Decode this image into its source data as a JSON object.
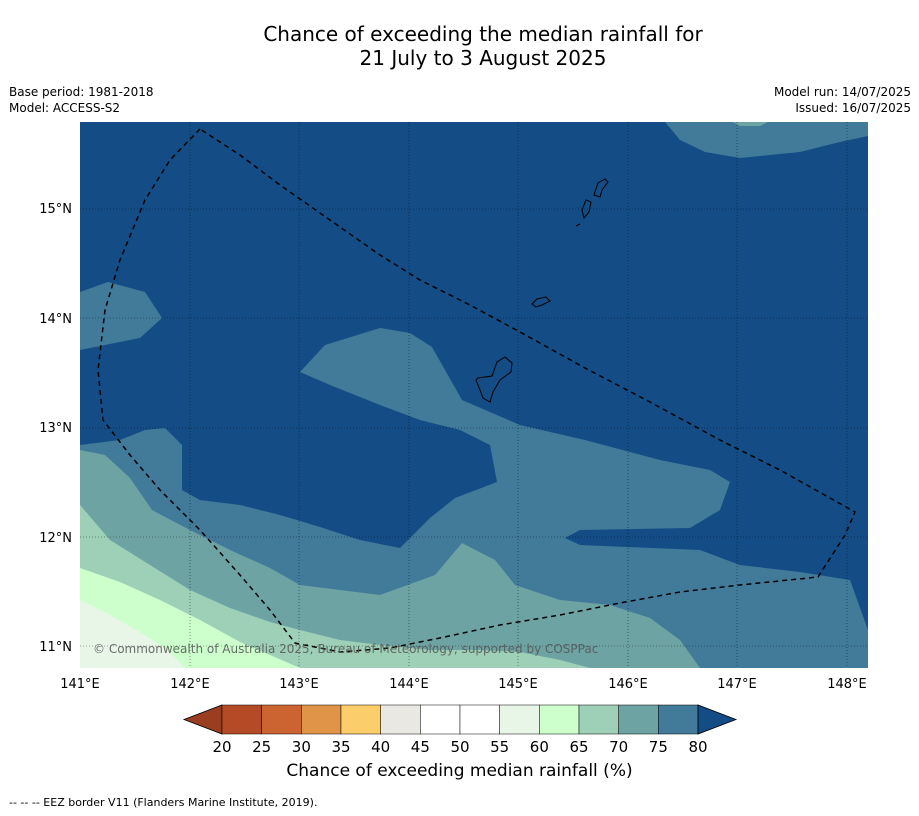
{
  "title": {
    "line1": "Chance of exceeding the median rainfall for",
    "line2": "21 July to 3 August 2025"
  },
  "meta_left": {
    "base_period": "Base period: 1981-2018",
    "model": "Model: ACCESS-S2"
  },
  "meta_right": {
    "model_run": "Model run: 14/07/2025",
    "issued": "Issued: 16/07/2025"
  },
  "map": {
    "lon_range": [
      141.0,
      148.2
    ],
    "lat_range": [
      10.8,
      15.8
    ],
    "lon_ticks": [
      "141°E",
      "142°E",
      "143°E",
      "144°E",
      "145°E",
      "146°E",
      "147°E",
      "148°E"
    ],
    "lat_ticks": [
      "15°N",
      "14°N",
      "13°N",
      "12°N",
      "11°N"
    ],
    "credit": "© Commonwealth of Australia 2025, Bureau of Meteorology, supported by COSPPac",
    "grid": true
  },
  "colorbar": {
    "ticks": [
      "20",
      "25",
      "30",
      "35",
      "40",
      "45",
      "50",
      "55",
      "60",
      "65",
      "70",
      "75",
      "80"
    ],
    "colors": [
      "#9a3e22",
      "#b54a27",
      "#cc6431",
      "#e09448",
      "#fccd6b",
      "#e9e8e2",
      "#ffffff",
      "#ffffff",
      "#e8f6e8",
      "#ccffcc",
      "#9ed0b7",
      "#6ea3a3",
      "#427a99",
      "#144c85"
    ],
    "label": "Chance of exceeding median rainfall (%)"
  },
  "footer": "--  --  -- EEZ border V11 (Flanders Marine Institute, 2019)."
}
